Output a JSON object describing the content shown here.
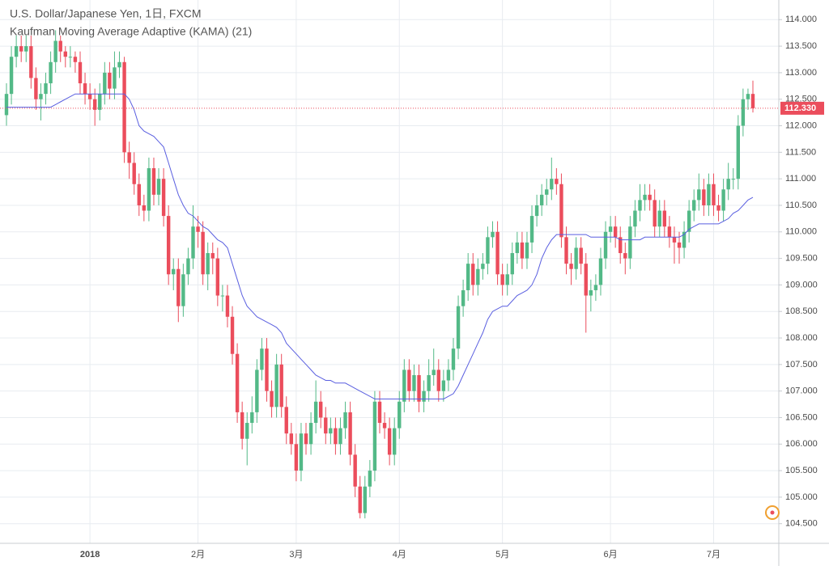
{
  "chart_data": {
    "type": "candlestick",
    "title": "U.S. Dollar/Japanese Yen, 1日, FXCM",
    "subtitle": "Kaufman Moving Average Adaptive (KAMA) (21)",
    "up_color": "#53b987",
    "down_color": "#eb4d5c",
    "kama_color": "#5a5fe0",
    "last_price": {
      "value": 112.33,
      "label": "112.330"
    },
    "grid": true,
    "ylim": [
      104.13,
      114.37
    ],
    "yticks": [
      {
        "value": 104.5,
        "label": "104.500"
      },
      {
        "value": 105,
        "label": "105.000"
      },
      {
        "value": 105.5,
        "label": "105.500"
      },
      {
        "value": 106,
        "label": "106.000"
      },
      {
        "value": 106.5,
        "label": "106.500"
      },
      {
        "value": 107,
        "label": "107.000"
      },
      {
        "value": 107.5,
        "label": "107.500"
      },
      {
        "value": 108,
        "label": "108.000"
      },
      {
        "value": 108.5,
        "label": "108.500"
      },
      {
        "value": 109,
        "label": "109.000"
      },
      {
        "value": 109.5,
        "label": "109.500"
      },
      {
        "value": 110,
        "label": "110.000"
      },
      {
        "value": 110.5,
        "label": "110.500"
      },
      {
        "value": 111,
        "label": "111.000"
      },
      {
        "value": 111.5,
        "label": "111.500"
      },
      {
        "value": 112,
        "label": "112.000"
      },
      {
        "value": 112.5,
        "label": "112.500"
      },
      {
        "value": 113,
        "label": "113.000"
      },
      {
        "value": 113.5,
        "label": "113.500"
      },
      {
        "value": 114,
        "label": "114.000"
      }
    ],
    "categories": [
      null,
      null,
      null,
      null,
      null,
      null,
      null,
      null,
      null,
      null,
      null,
      null,
      null,
      null,
      null,
      null,
      null,
      "2018",
      null,
      null,
      null,
      null,
      null,
      null,
      null,
      null,
      null,
      null,
      null,
      null,
      null,
      null,
      null,
      null,
      null,
      null,
      null,
      null,
      null,
      "2月",
      null,
      null,
      null,
      null,
      null,
      null,
      null,
      null,
      null,
      null,
      null,
      null,
      null,
      null,
      null,
      null,
      null,
      null,
      null,
      "3月",
      null,
      null,
      null,
      null,
      null,
      null,
      null,
      null,
      null,
      null,
      null,
      null,
      null,
      null,
      null,
      null,
      null,
      null,
      null,
      null,
      "4月",
      null,
      null,
      null,
      null,
      null,
      null,
      null,
      null,
      null,
      null,
      null,
      null,
      null,
      null,
      null,
      null,
      null,
      null,
      null,
      null,
      "5月",
      null,
      null,
      null,
      null,
      null,
      null,
      null,
      null,
      null,
      null,
      null,
      null,
      null,
      null,
      null,
      null,
      null,
      null,
      null,
      null,
      null,
      "6月",
      null,
      null,
      null,
      null,
      null,
      null,
      null,
      null,
      null,
      null,
      null,
      null,
      null,
      null,
      null,
      null,
      null,
      null,
      null,
      null,
      "7月",
      null,
      null,
      null,
      null,
      null,
      null,
      null,
      null
    ],
    "open": [
      112.2,
      112.6,
      113.3,
      113.5,
      113.4,
      113.5,
      112.9,
      112.5,
      112.6,
      112.8,
      113.2,
      113.6,
      113.4,
      113.3,
      113.3,
      113.2,
      112.8,
      112.6,
      112.5,
      112.3,
      112.6,
      113.0,
      112.7,
      113.1,
      113.2,
      111.5,
      111.3,
      110.9,
      110.5,
      110.4,
      111.2,
      110.7,
      111.0,
      110.3,
      109.2,
      109.3,
      108.6,
      109.2,
      109.5,
      110.1,
      110.0,
      109.2,
      109.6,
      109.5,
      108.8,
      108.8,
      108.4,
      107.7,
      106.6,
      106.1,
      106.4,
      106.6,
      107.4,
      107.8,
      107.0,
      106.7,
      107.5,
      106.7,
      106.2,
      106.0,
      105.5,
      106.2,
      106.0,
      106.4,
      106.8,
      106.5,
      106.2,
      106.3,
      106.0,
      106.3,
      106.6,
      105.8,
      105.2,
      104.7,
      105.2,
      105.5,
      106.8,
      106.4,
      106.3,
      105.8,
      106.3,
      106.8,
      107.4,
      107.0,
      107.3,
      106.8,
      107.0,
      107.3,
      107.4,
      107.0,
      107.2,
      107.4,
      107.8,
      108.6,
      108.9,
      109.4,
      109.0,
      109.3,
      109.4,
      109.9,
      110.0,
      109.2,
      109.0,
      109.2,
      109.6,
      109.8,
      109.5,
      109.8,
      110.3,
      110.5,
      110.7,
      110.8,
      111.0,
      110.9,
      109.9,
      109.4,
      109.3,
      109.7,
      109.4,
      108.8,
      108.9,
      109.0,
      109.5,
      110.0,
      110.1,
      109.9,
      109.6,
      109.5,
      110.1,
      110.4,
      110.6,
      110.7,
      110.6,
      110.1,
      110.4,
      110.1,
      109.9,
      109.8,
      109.7,
      110.0,
      110.4,
      110.6,
      110.8,
      110.5,
      110.9,
      110.5,
      110.4,
      110.8,
      111.0,
      111.0,
      112.0,
      112.5,
      112.6
    ],
    "high": [
      112.8,
      113.5,
      113.7,
      113.7,
      113.7,
      113.7,
      113.1,
      112.8,
      113.0,
      113.4,
      113.8,
      113.7,
      113.5,
      113.5,
      113.4,
      113.4,
      113.0,
      112.8,
      112.7,
      112.8,
      113.2,
      113.2,
      113.4,
      113.4,
      113.3,
      111.7,
      111.5,
      111.1,
      110.7,
      111.4,
      111.4,
      111.2,
      111.2,
      110.5,
      109.5,
      109.5,
      109.4,
      109.7,
      110.5,
      110.3,
      110.2,
      109.8,
      109.8,
      109.7,
      109.0,
      109.0,
      108.6,
      107.9,
      106.8,
      106.6,
      106.9,
      107.6,
      108.0,
      108.0,
      107.2,
      107.7,
      107.7,
      106.9,
      106.4,
      106.2,
      106.4,
      106.4,
      106.6,
      107.2,
      107.0,
      106.7,
      106.5,
      106.5,
      106.5,
      106.8,
      106.8,
      106.0,
      105.4,
      105.4,
      105.7,
      107.0,
      107.0,
      106.6,
      106.5,
      106.5,
      107.0,
      107.6,
      107.6,
      107.5,
      107.5,
      107.2,
      107.6,
      107.8,
      107.6,
      107.4,
      107.6,
      108.0,
      108.8,
      109.1,
      109.6,
      109.6,
      109.5,
      109.6,
      110.1,
      110.2,
      110.2,
      109.4,
      109.4,
      109.8,
      110.0,
      110.0,
      110.0,
      110.5,
      110.7,
      110.9,
      111.0,
      111.4,
      111.2,
      111.1,
      110.1,
      109.6,
      109.9,
      109.9,
      109.6,
      109.1,
      109.2,
      109.7,
      110.2,
      110.3,
      110.3,
      110.1,
      109.8,
      110.3,
      110.6,
      110.9,
      110.9,
      110.9,
      110.8,
      110.6,
      110.6,
      110.3,
      110.1,
      110.0,
      110.2,
      110.6,
      110.8,
      111.1,
      111.0,
      111.1,
      111.1,
      110.7,
      111.0,
      111.3,
      111.2,
      112.2,
      112.7,
      112.7,
      112.85
    ],
    "low": [
      112.0,
      112.4,
      113.1,
      113.2,
      113.2,
      112.7,
      112.3,
      112.1,
      112.4,
      112.6,
      113.0,
      113.2,
      113.1,
      113.1,
      113.0,
      112.6,
      112.4,
      112.3,
      112.0,
      112.1,
      112.4,
      112.5,
      112.5,
      112.9,
      111.3,
      111.0,
      110.7,
      110.3,
      110.2,
      110.2,
      110.5,
      110.5,
      110.1,
      109.0,
      108.9,
      108.3,
      108.4,
      109.0,
      109.3,
      109.7,
      109.0,
      108.9,
      109.2,
      108.6,
      108.5,
      108.2,
      107.5,
      106.4,
      105.9,
      105.6,
      106.2,
      106.4,
      107.2,
      106.8,
      106.5,
      106.5,
      106.5,
      106.0,
      105.8,
      105.3,
      105.3,
      105.8,
      105.8,
      106.2,
      106.3,
      106.0,
      106.0,
      105.8,
      105.8,
      106.1,
      105.6,
      105.0,
      104.6,
      104.6,
      105.0,
      105.3,
      106.2,
      106.1,
      105.6,
      105.6,
      106.1,
      106.6,
      106.8,
      106.8,
      106.6,
      106.6,
      106.8,
      107.1,
      106.8,
      106.8,
      107.0,
      107.2,
      107.6,
      108.4,
      108.7,
      108.8,
      108.8,
      109.1,
      109.2,
      109.7,
      109.0,
      108.8,
      108.8,
      109.0,
      109.4,
      109.3,
      109.3,
      109.6,
      110.1,
      110.3,
      110.5,
      110.6,
      110.7,
      109.7,
      109.2,
      109.0,
      109.1,
      109.2,
      108.1,
      108.5,
      108.7,
      108.8,
      109.3,
      109.8,
      109.7,
      109.4,
      109.2,
      109.3,
      109.9,
      110.2,
      110.4,
      110.4,
      109.9,
      109.9,
      109.9,
      109.7,
      109.4,
      109.4,
      109.5,
      109.8,
      110.2,
      110.4,
      110.3,
      110.3,
      110.3,
      110.2,
      110.2,
      110.6,
      110.8,
      110.8,
      111.8,
      112.3,
      112.25
    ],
    "close": [
      112.6,
      113.3,
      113.5,
      113.4,
      113.5,
      112.9,
      112.5,
      112.6,
      112.8,
      113.2,
      113.6,
      113.4,
      113.3,
      113.3,
      113.2,
      112.8,
      112.6,
      112.5,
      112.3,
      112.6,
      113.0,
      112.7,
      113.1,
      113.2,
      111.5,
      111.3,
      110.9,
      110.5,
      110.4,
      111.2,
      110.7,
      111.0,
      110.3,
      109.2,
      109.3,
      108.6,
      109.2,
      109.5,
      110.1,
      110.0,
      109.2,
      109.6,
      109.5,
      108.8,
      108.8,
      108.4,
      107.7,
      106.6,
      106.1,
      106.4,
      106.6,
      107.4,
      107.8,
      107.0,
      106.7,
      107.5,
      106.7,
      106.2,
      106.0,
      105.5,
      106.2,
      106.0,
      106.4,
      106.8,
      106.5,
      106.2,
      106.3,
      106.0,
      106.3,
      106.6,
      105.8,
      105.2,
      104.7,
      105.2,
      105.5,
      106.8,
      106.4,
      106.3,
      105.8,
      106.3,
      106.8,
      107.4,
      107.0,
      107.3,
      106.8,
      107.0,
      107.3,
      107.4,
      107.0,
      107.2,
      107.4,
      107.8,
      108.6,
      108.9,
      109.4,
      109.0,
      109.3,
      109.4,
      109.9,
      110.0,
      109.2,
      109.0,
      109.2,
      109.6,
      109.8,
      109.5,
      109.8,
      110.3,
      110.5,
      110.7,
      110.8,
      111.0,
      110.9,
      109.9,
      109.4,
      109.3,
      109.7,
      109.4,
      108.8,
      108.9,
      109.0,
      109.5,
      110.0,
      110.1,
      109.9,
      109.6,
      109.5,
      110.1,
      110.4,
      110.6,
      110.7,
      110.6,
      110.1,
      110.4,
      110.1,
      109.9,
      109.8,
      109.7,
      110.0,
      110.4,
      110.6,
      110.8,
      110.5,
      110.9,
      110.5,
      110.4,
      110.8,
      111.0,
      111.0,
      112.0,
      112.5,
      112.6,
      112.33
    ],
    "kama": [
      112.35,
      112.35,
      112.35,
      112.35,
      112.35,
      112.35,
      112.35,
      112.35,
      112.35,
      112.35,
      112.4,
      112.45,
      112.5,
      112.55,
      112.6,
      112.6,
      112.6,
      112.6,
      112.6,
      112.6,
      112.6,
      112.6,
      112.6,
      112.6,
      112.6,
      112.5,
      112.3,
      112.0,
      111.9,
      111.85,
      111.8,
      111.7,
      111.6,
      111.3,
      111.0,
      110.7,
      110.5,
      110.35,
      110.3,
      110.2,
      110.1,
      110.05,
      109.95,
      109.85,
      109.8,
      109.7,
      109.4,
      109.1,
      108.8,
      108.6,
      108.5,
      108.4,
      108.35,
      108.3,
      108.25,
      108.2,
      108.1,
      107.9,
      107.8,
      107.7,
      107.6,
      107.5,
      107.4,
      107.3,
      107.25,
      107.2,
      107.2,
      107.15,
      107.15,
      107.15,
      107.1,
      107.05,
      107.0,
      106.95,
      106.9,
      106.85,
      106.85,
      106.85,
      106.85,
      106.85,
      106.85,
      106.85,
      106.85,
      106.85,
      106.85,
      106.85,
      106.85,
      106.85,
      106.85,
      106.85,
      106.9,
      106.95,
      107.1,
      107.3,
      107.5,
      107.7,
      107.9,
      108.1,
      108.35,
      108.5,
      108.55,
      108.6,
      108.6,
      108.7,
      108.8,
      108.85,
      108.9,
      109.0,
      109.2,
      109.5,
      109.7,
      109.85,
      109.95,
      109.95,
      109.95,
      109.95,
      109.95,
      109.95,
      109.95,
      109.9,
      109.9,
      109.9,
      109.9,
      109.9,
      109.9,
      109.85,
      109.85,
      109.85,
      109.85,
      109.85,
      109.9,
      109.9,
      109.9,
      109.9,
      109.9,
      109.9,
      109.9,
      109.9,
      109.95,
      110.05,
      110.1,
      110.15,
      110.15,
      110.15,
      110.15,
      110.15,
      110.2,
      110.25,
      110.35,
      110.4,
      110.5,
      110.6,
      110.65
    ]
  }
}
